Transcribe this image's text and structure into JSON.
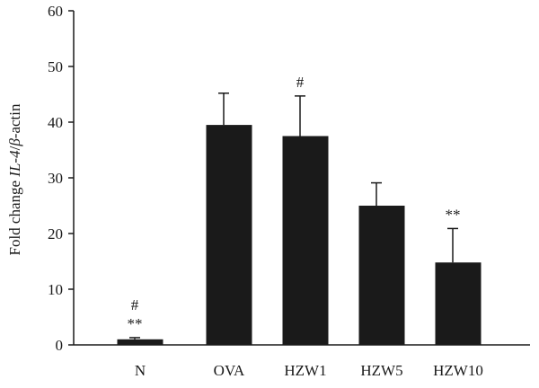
{
  "chart_data": {
    "type": "bar",
    "categories": [
      "N",
      "OVA",
      "HZW1",
      "HZW5",
      "HZW10"
    ],
    "values": [
      1.0,
      39.5,
      37.5,
      25.0,
      14.8
    ],
    "errors": [
      0.3,
      5.7,
      7.2,
      4.1,
      6.1
    ],
    "annotations": [
      "#\n**",
      "",
      "#",
      "",
      "**"
    ],
    "title": "",
    "xlabel": "",
    "ylabel_parts": [
      {
        "text": "Fold change ",
        "italic": false
      },
      {
        "text": "IL-4",
        "italic": true
      },
      {
        "text": "/",
        "italic": false
      },
      {
        "text": "β",
        "italic": true
      },
      {
        "text": "-actin",
        "italic": false
      }
    ],
    "ylim": [
      0,
      60
    ],
    "yticks": [
      0,
      10,
      20,
      30,
      40,
      50,
      60
    ],
    "bar_color": "#1a1a1a",
    "grid": false,
    "legend": "none"
  }
}
